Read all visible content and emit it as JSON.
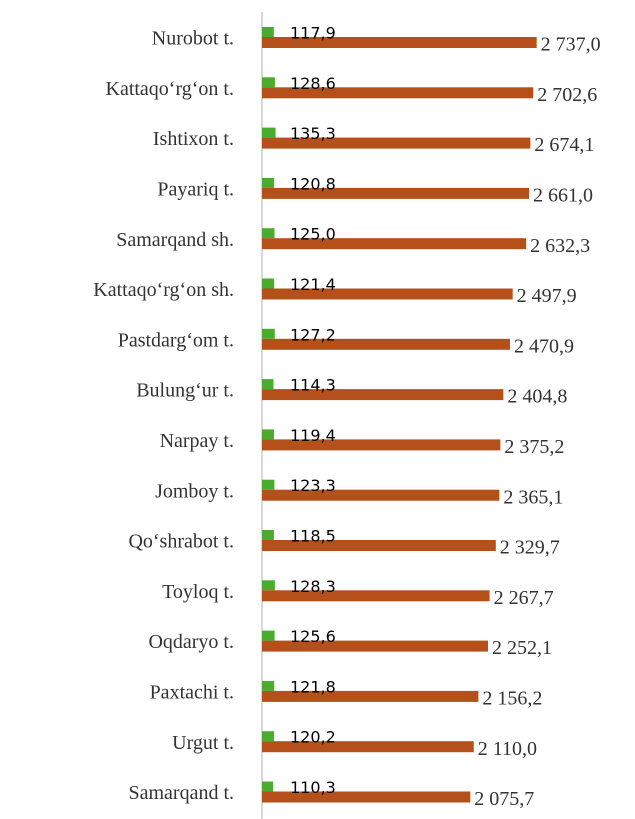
{
  "chart_data": {
    "type": "barh",
    "categories": [
      "Nurobot t.",
      "Kattaqo‘rg‘on t.",
      "Ishtixon t.",
      "Payariq t.",
      "Samarqand sh.",
      "Kattaqo‘rg‘on sh.",
      "Pastdarg‘om t.",
      "Bulung‘ur t.",
      "Narpay t.",
      "Jomboy t.",
      "Qo‘shrabot t.",
      "Toyloq t.",
      "Oqdaryo t.",
      "Paxtachi t.",
      "Urgut t.",
      "Samarqand t."
    ],
    "series": [
      {
        "color": "#4aac2c",
        "values": [
          117.9,
          128.6,
          135.3,
          120.8,
          125.0,
          121.4,
          127.2,
          114.3,
          119.4,
          123.3,
          118.5,
          128.3,
          125.6,
          121.8,
          120.2,
          110.3
        ],
        "value_labels": [
          "117,9",
          "128,6",
          "135,3",
          "120,8",
          "125,0",
          "121,4",
          "127,2",
          "114,3",
          "119,4",
          "123,3",
          "118,5",
          "128,3",
          "125,6",
          "121,8",
          "120,2",
          "110,3"
        ]
      },
      {
        "color": "#b5501b",
        "values": [
          2737.0,
          2702.6,
          2674.1,
          2661.0,
          2632.3,
          2497.9,
          2470.9,
          2404.8,
          2375.2,
          2365.1,
          2329.7,
          2267.7,
          2252.1,
          2156.2,
          2110.0,
          2075.7
        ],
        "value_labels": [
          "2 737,0",
          "2 702,6",
          "2 674,1",
          "2 661,0",
          "2 632,3",
          "2 497,9",
          "2 470,9",
          "2 404,8",
          "2 375,2",
          "2 365,1",
          "2 329,7",
          "2 267,7",
          "2 252,1",
          "2 156,2",
          "2 110,0",
          "2 075,7"
        ]
      }
    ],
    "xlim": [
      0,
      2800
    ]
  }
}
